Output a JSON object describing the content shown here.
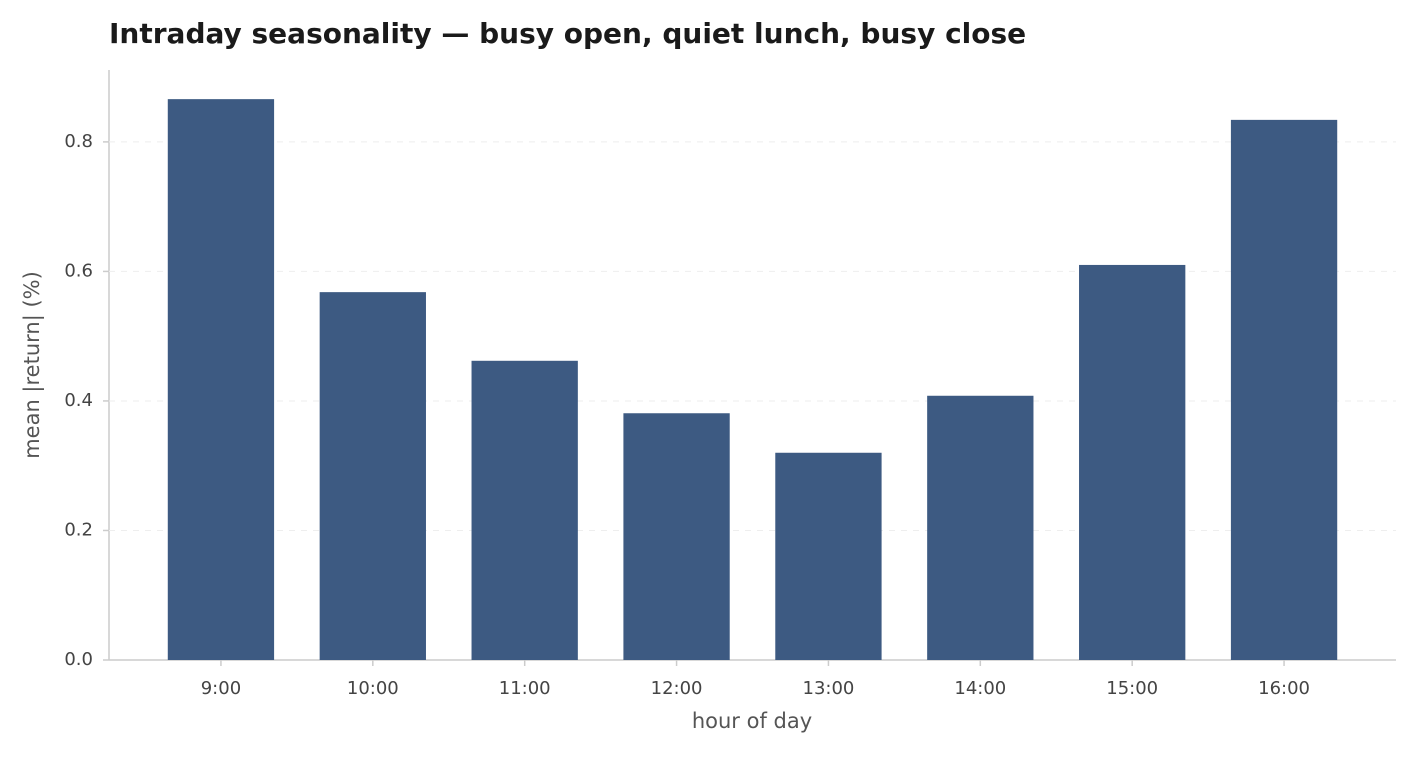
{
  "chart_data": {
    "type": "bar",
    "title": "Intraday seasonality — busy open, quiet lunch, busy close",
    "x_label": "hour of day",
    "y_label": "mean |return| (%)",
    "categories": [
      "9:00",
      "10:00",
      "11:00",
      "12:00",
      "13:00",
      "14:00",
      "15:00",
      "16:00"
    ],
    "values": [
      0.866,
      0.568,
      0.462,
      0.381,
      0.32,
      0.408,
      0.61,
      0.834
    ],
    "color": "#3d5a82",
    "ylim": [
      0,
      0.911
    ],
    "yticks": [
      {
        "value": 0,
        "label": "0.0"
      },
      0.2,
      0.4,
      0.6,
      0.8
    ],
    "grid": true
  }
}
